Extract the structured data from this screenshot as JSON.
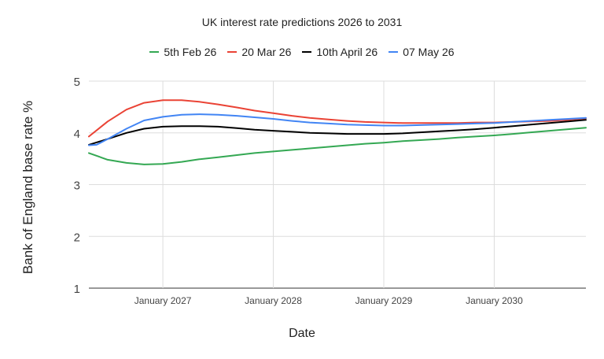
{
  "chart_data": {
    "type": "line",
    "title": "UK interest rate predictions 2026 to 2031",
    "xlabel": "Date",
    "ylabel": "Bank of England base rate %",
    "ylim": [
      1,
      5
    ],
    "xlim": [
      2026.33,
      2030.83
    ],
    "yticks": [
      1,
      2,
      3,
      4,
      5
    ],
    "xticks": [
      {
        "label": "January 2027",
        "value": 2027.0
      },
      {
        "label": "January 2028",
        "value": 2028.0
      },
      {
        "label": "January 2029",
        "value": 2029.0
      },
      {
        "label": "January 2030",
        "value": 2030.0
      }
    ],
    "grid": true,
    "legend_position": "top",
    "series": [
      {
        "name": "5th Feb 26",
        "color": "#34a853",
        "points": [
          [
            2026.33,
            3.61
          ],
          [
            2026.5,
            3.48
          ],
          [
            2026.67,
            3.42
          ],
          [
            2026.83,
            3.39
          ],
          [
            2027.0,
            3.4
          ],
          [
            2027.17,
            3.44
          ],
          [
            2027.33,
            3.49
          ],
          [
            2027.5,
            3.53
          ],
          [
            2027.67,
            3.57
          ],
          [
            2027.83,
            3.61
          ],
          [
            2028.0,
            3.64
          ],
          [
            2028.17,
            3.67
          ],
          [
            2028.33,
            3.7
          ],
          [
            2028.5,
            3.73
          ],
          [
            2028.67,
            3.76
          ],
          [
            2028.83,
            3.79
          ],
          [
            2029.0,
            3.81
          ],
          [
            2029.17,
            3.84
          ],
          [
            2029.33,
            3.86
          ],
          [
            2029.5,
            3.88
          ],
          [
            2029.67,
            3.91
          ],
          [
            2029.83,
            3.93
          ],
          [
            2030.0,
            3.95
          ],
          [
            2030.17,
            3.98
          ],
          [
            2030.33,
            4.01
          ],
          [
            2030.5,
            4.04
          ],
          [
            2030.67,
            4.07
          ],
          [
            2030.83,
            4.1
          ]
        ]
      },
      {
        "name": "20 Mar 26",
        "color": "#ea4335",
        "points": [
          [
            2026.33,
            3.93
          ],
          [
            2026.5,
            4.22
          ],
          [
            2026.67,
            4.45
          ],
          [
            2026.83,
            4.58
          ],
          [
            2027.0,
            4.63
          ],
          [
            2027.17,
            4.63
          ],
          [
            2027.33,
            4.6
          ],
          [
            2027.5,
            4.55
          ],
          [
            2027.67,
            4.49
          ],
          [
            2027.83,
            4.43
          ],
          [
            2028.0,
            4.38
          ],
          [
            2028.17,
            4.33
          ],
          [
            2028.33,
            4.29
          ],
          [
            2028.5,
            4.26
          ],
          [
            2028.67,
            4.23
          ],
          [
            2028.83,
            4.21
          ],
          [
            2029.0,
            4.2
          ],
          [
            2029.17,
            4.19
          ],
          [
            2029.33,
            4.19
          ],
          [
            2029.5,
            4.19
          ],
          [
            2029.67,
            4.19
          ],
          [
            2029.83,
            4.2
          ],
          [
            2030.0,
            4.2
          ],
          [
            2030.17,
            4.21
          ],
          [
            2030.33,
            4.22
          ],
          [
            2030.5,
            4.23
          ],
          [
            2030.67,
            4.25
          ],
          [
            2030.83,
            4.28
          ]
        ]
      },
      {
        "name": "10th April 26",
        "color": "#000000",
        "points": [
          [
            2026.33,
            3.77
          ],
          [
            2026.5,
            3.88
          ],
          [
            2026.67,
            4.0
          ],
          [
            2026.83,
            4.08
          ],
          [
            2027.0,
            4.12
          ],
          [
            2027.17,
            4.13
          ],
          [
            2027.33,
            4.13
          ],
          [
            2027.5,
            4.12
          ],
          [
            2027.67,
            4.09
          ],
          [
            2027.83,
            4.06
          ],
          [
            2028.0,
            4.04
          ],
          [
            2028.17,
            4.02
          ],
          [
            2028.33,
            4.0
          ],
          [
            2028.5,
            3.99
          ],
          [
            2028.67,
            3.98
          ],
          [
            2028.83,
            3.98
          ],
          [
            2029.0,
            3.98
          ],
          [
            2029.17,
            3.99
          ],
          [
            2029.33,
            4.01
          ],
          [
            2029.5,
            4.03
          ],
          [
            2029.67,
            4.05
          ],
          [
            2029.83,
            4.07
          ],
          [
            2030.0,
            4.1
          ],
          [
            2030.17,
            4.13
          ],
          [
            2030.33,
            4.16
          ],
          [
            2030.5,
            4.19
          ],
          [
            2030.67,
            4.22
          ],
          [
            2030.83,
            4.25
          ]
        ]
      },
      {
        "name": "07 May 26",
        "color": "#4285f4",
        "points": [
          [
            2026.33,
            3.76
          ],
          [
            2026.4,
            3.77
          ],
          [
            2026.5,
            3.88
          ],
          [
            2026.67,
            4.08
          ],
          [
            2026.83,
            4.24
          ],
          [
            2027.0,
            4.31
          ],
          [
            2027.17,
            4.35
          ],
          [
            2027.33,
            4.36
          ],
          [
            2027.5,
            4.35
          ],
          [
            2027.67,
            4.33
          ],
          [
            2027.83,
            4.3
          ],
          [
            2028.0,
            4.27
          ],
          [
            2028.17,
            4.23
          ],
          [
            2028.33,
            4.2
          ],
          [
            2028.5,
            4.18
          ],
          [
            2028.67,
            4.16
          ],
          [
            2028.83,
            4.15
          ],
          [
            2029.0,
            4.14
          ],
          [
            2029.17,
            4.14
          ],
          [
            2029.33,
            4.15
          ],
          [
            2029.5,
            4.16
          ],
          [
            2029.67,
            4.17
          ],
          [
            2029.83,
            4.18
          ],
          [
            2030.0,
            4.19
          ],
          [
            2030.17,
            4.21
          ],
          [
            2030.33,
            4.23
          ],
          [
            2030.5,
            4.25
          ],
          [
            2030.67,
            4.27
          ],
          [
            2030.83,
            4.29
          ]
        ]
      }
    ]
  }
}
